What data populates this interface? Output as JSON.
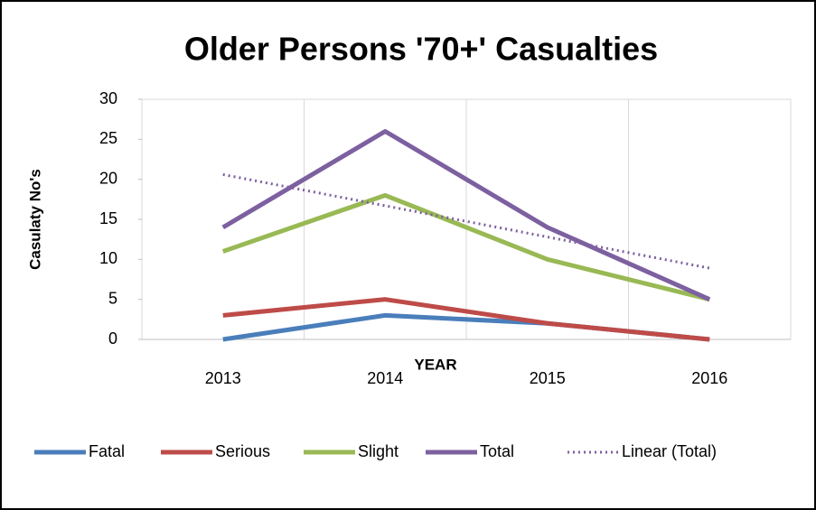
{
  "chart_data": {
    "type": "line",
    "title": "Older Persons '70+' Casualties",
    "xlabel": "YEAR",
    "ylabel": "Casulaty No's",
    "categories": [
      "2013",
      "2014",
      "2015",
      "2016"
    ],
    "series": [
      {
        "name": "Fatal",
        "color": "#4a7ebb",
        "values": [
          0,
          3,
          2,
          0
        ]
      },
      {
        "name": "Serious",
        "color": "#be4b48",
        "values": [
          3,
          5,
          2,
          0
        ]
      },
      {
        "name": "Slight",
        "color": "#98b954",
        "values": [
          11,
          18,
          10,
          5
        ]
      },
      {
        "name": "Total",
        "color": "#7d60a0",
        "values": [
          14,
          26,
          14,
          5
        ]
      },
      {
        "name": "Linear (Total)",
        "color": "#7d60a0",
        "dotted": true,
        "values": [
          20.6,
          16.7,
          12.8,
          8.9
        ]
      }
    ],
    "ylim": [
      0,
      30
    ],
    "yticks": [
      0,
      5,
      10,
      15,
      20,
      25,
      30
    ],
    "grid": "x",
    "legend": "bottom"
  }
}
